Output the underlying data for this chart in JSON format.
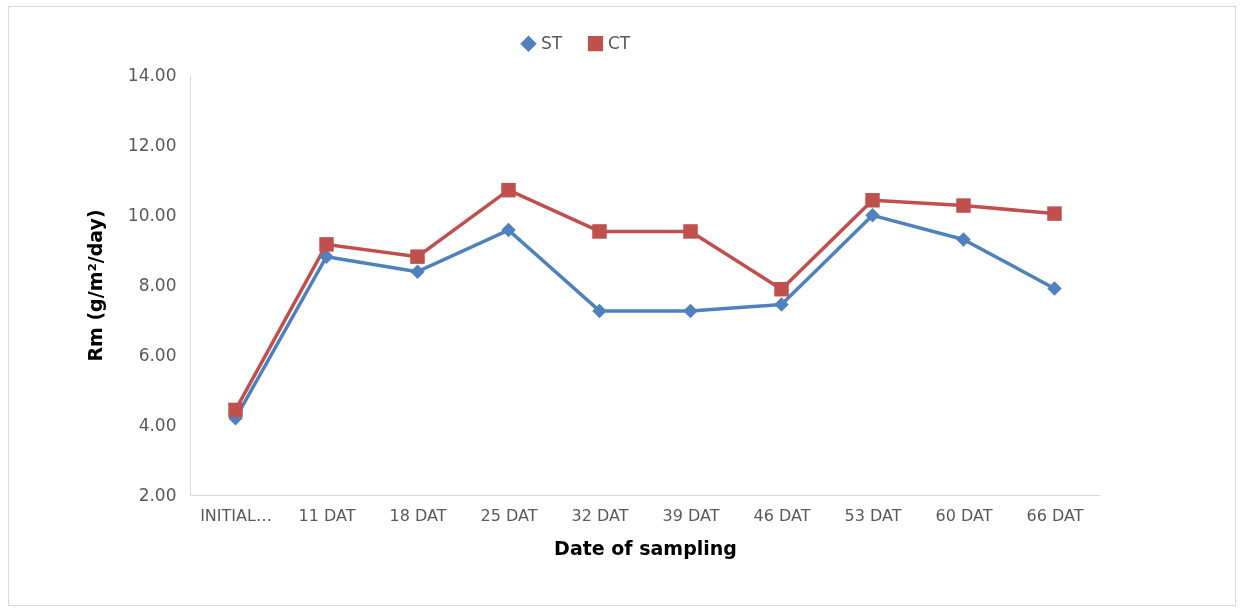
{
  "chart_data": {
    "type": "line",
    "categories": [
      "INITIAL…",
      "11 DAT",
      "18 DAT",
      "25 DAT",
      "32 DAT",
      "39 DAT",
      "46 DAT",
      "53 DAT",
      "60 DAT",
      "66 DAT"
    ],
    "xlabel": "Date of sampling",
    "ylabel": "Rm (g/m²/day)",
    "series": [
      {
        "name": "ST",
        "color": "#4f81bd",
        "marker": "diamond",
        "values": [
          4.19,
          8.81,
          8.38,
          9.57,
          7.26,
          7.26,
          7.44,
          9.99,
          9.3,
          7.9
        ]
      },
      {
        "name": "CT",
        "color": "#c0504d",
        "marker": "square",
        "values": [
          4.43,
          9.16,
          8.81,
          10.71,
          9.53,
          9.53,
          7.88,
          10.42,
          10.27,
          10.04
        ]
      }
    ],
    "ylim": [
      2,
      14
    ],
    "yticks": [
      {
        "value": 2,
        "label": "2.00"
      },
      {
        "value": 4,
        "label": "4.00"
      },
      {
        "value": 6,
        "label": "6.00"
      },
      {
        "value": 8,
        "label": "8.00"
      },
      {
        "value": 10,
        "label": "10.00"
      },
      {
        "value": 12,
        "label": "12.00"
      },
      {
        "value": 14,
        "label": "14.00"
      }
    ],
    "grid": false,
    "legend": "top",
    "line_style": "solid"
  }
}
